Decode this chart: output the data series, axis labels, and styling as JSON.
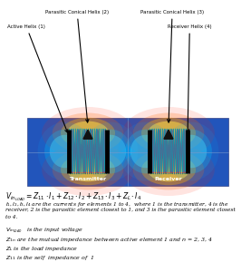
{
  "bg_color": "#f0f0f0",
  "image_bg": "#3a5fcd",
  "fig_width": 2.77,
  "fig_height": 3.0,
  "labels": {
    "parasitic2": "Parasitic Conical Helix (2)",
    "parasitic3": "Parasitic Conical Helix (3)",
    "active1": "Active Helix (1)",
    "receiver4": "Receiver Helix (4)",
    "transmitter": "Transmitter",
    "receiver": "Receiver"
  },
  "eq_line": "$V_{in_{LOAD}} = Z_{11} \\cdot I_1 + Z_{12} \\cdot I_2 + Z_{13} \\cdot I_3 + Z_L \\cdot I_4$",
  "text_lines": [
    "$I_1, I_2, I_3, I_4$ are the currents for elements 1 to 4,  where 1 is the transmitter, 4 is the",
    "receiver, 2 is the parasitic element closest to 1, and 3 is the parasitic element closest",
    "to 4."
  ],
  "v_line_a": "$V_{in_{LOAD}}$",
  "v_line_b": "   is the input voltage",
  "z1n_line_a": "$Z_{1n}$",
  "z1n_line_b": " are the mutual impedance between active element 1 and $n$ = 2, 3, 4",
  "zl_line_a": "$Z_L$",
  "zl_line_b": " is the load impedance",
  "z11_line_a": "$Z_{11}$",
  "z11_line_b": " is the self  impedance of  1"
}
